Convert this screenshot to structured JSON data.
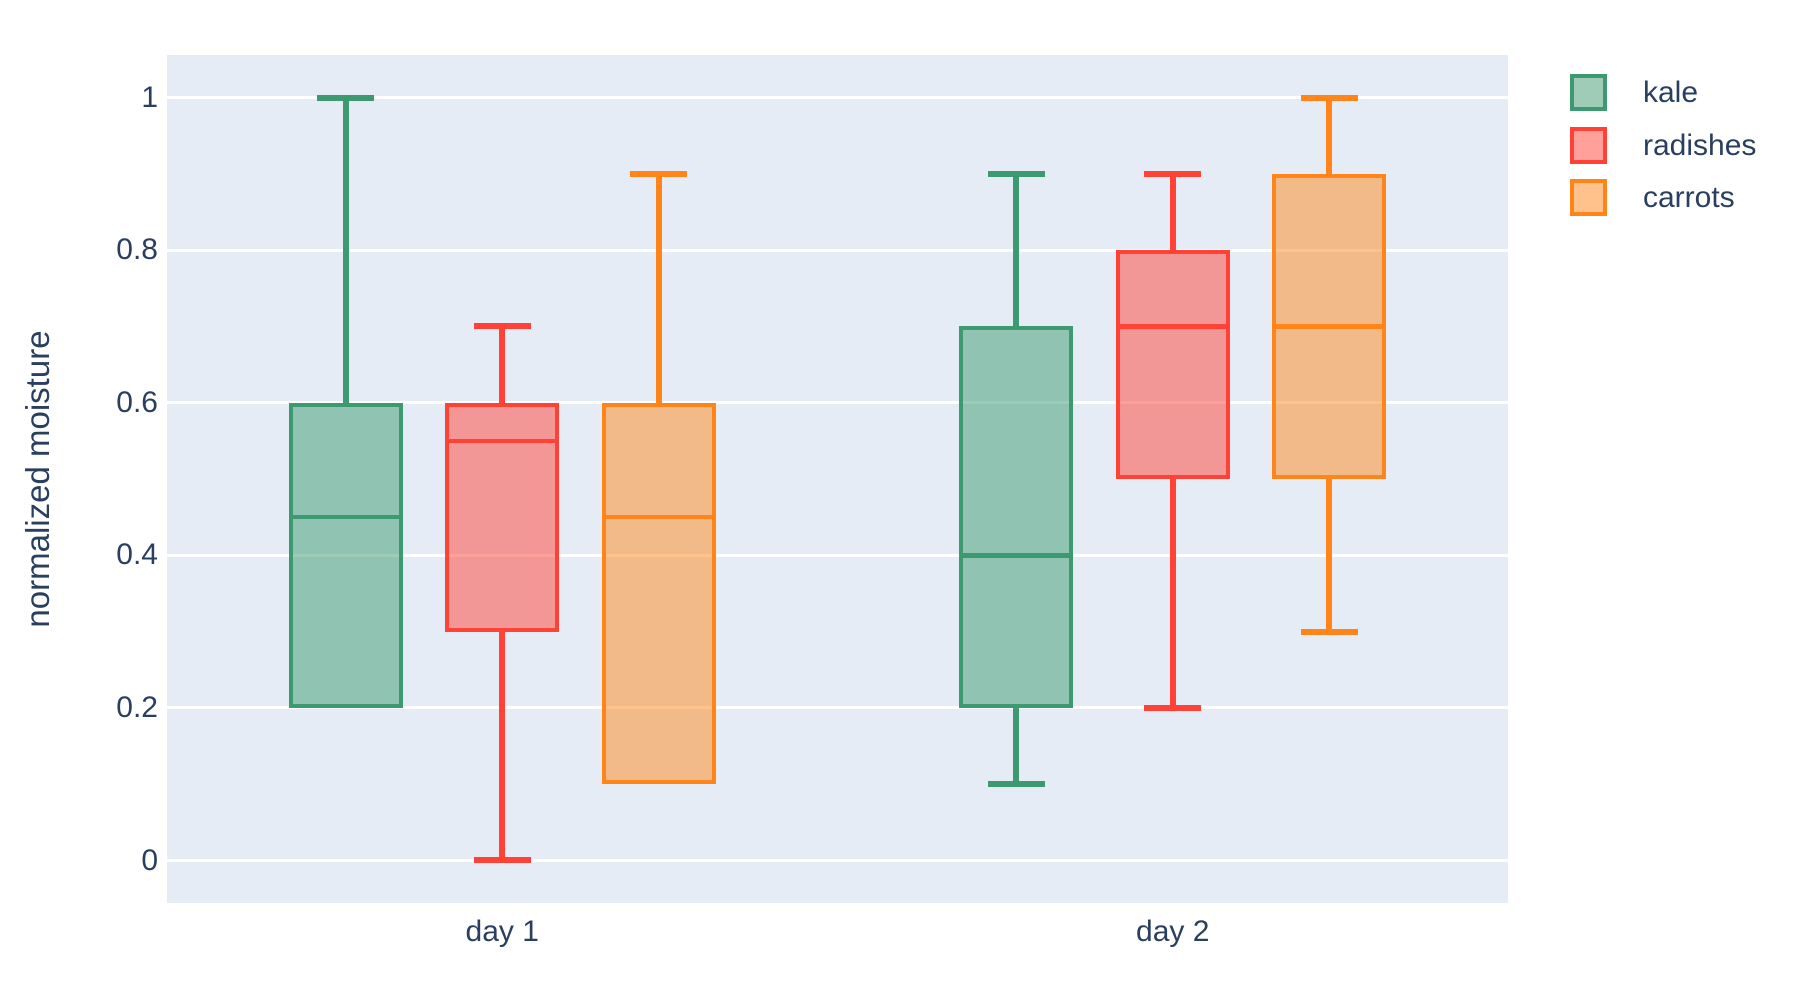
{
  "colors": {
    "text": "#2a3f5f",
    "plot_background": "#e5ecf6",
    "gridline": "#ffffff",
    "kale": "#3D9970",
    "radishes": "#FF4136",
    "carrots": "#FF851B"
  },
  "figure": {
    "y_axis": {
      "title": "normalized moisture",
      "tick_labels": [
        "1",
        "0.8",
        "0.6",
        "0.4",
        "0.2",
        "0"
      ],
      "tick_values": [
        1,
        0.8,
        0.6,
        0.4,
        0.2,
        0
      ]
    },
    "x_axis": {
      "tick_labels": [
        "day 1",
        "day 2"
      ]
    },
    "legend": {
      "items": [
        {
          "label": "kale",
          "color": "#3D9970"
        },
        {
          "label": "radishes",
          "color": "#FF4136"
        },
        {
          "label": "carrots",
          "color": "#FF851B"
        }
      ]
    }
  },
  "chart_data": {
    "type": "box",
    "title": "",
    "xlabel": "",
    "ylabel": "normalized moisture",
    "categories": [
      "day 1",
      "day 2"
    ],
    "yticks": [
      0,
      0.2,
      0.4,
      0.6,
      0.8,
      1
    ],
    "ylim": [
      -0.07,
      1.06
    ],
    "grid": true,
    "legend_position": "top-right",
    "boxmode": "group",
    "series": [
      {
        "name": "kale",
        "color": "#3D9970",
        "boxes": [
          {
            "category": "day 1",
            "min": 0.2,
            "q1": 0.2,
            "median": 0.45,
            "q3": 0.6,
            "max": 1.0
          },
          {
            "category": "day 2",
            "min": 0.1,
            "q1": 0.2,
            "median": 0.4,
            "q3": 0.7,
            "max": 0.9
          }
        ]
      },
      {
        "name": "radishes",
        "color": "#FF4136",
        "boxes": [
          {
            "category": "day 1",
            "min": 0.0,
            "q1": 0.3,
            "median": 0.55,
            "q3": 0.6,
            "max": 0.7
          },
          {
            "category": "day 2",
            "min": 0.2,
            "q1": 0.5,
            "median": 0.7,
            "q3": 0.8,
            "max": 0.9
          }
        ]
      },
      {
        "name": "carrots",
        "color": "#FF851B",
        "boxes": [
          {
            "category": "day 1",
            "min": 0.1,
            "q1": 0.1,
            "median": 0.45,
            "q3": 0.6,
            "max": 0.9
          },
          {
            "category": "day 2",
            "min": 0.3,
            "q1": 0.5,
            "median": 0.7,
            "q3": 0.9,
            "max": 1.0
          }
        ]
      }
    ]
  }
}
